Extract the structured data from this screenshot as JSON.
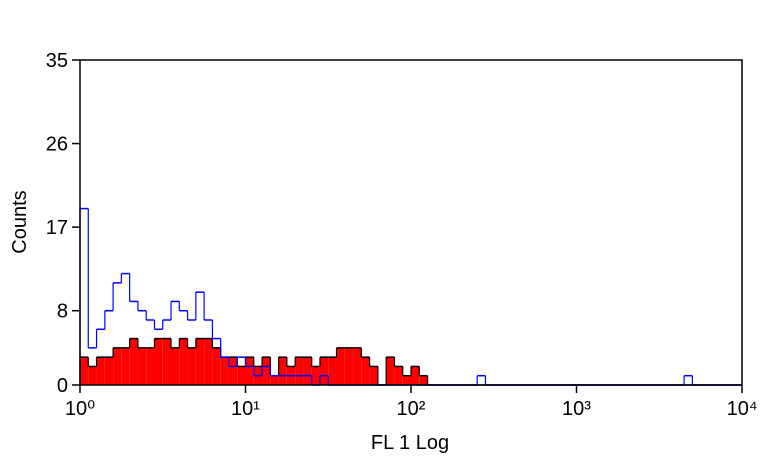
{
  "chart_data": {
    "type": "histogram",
    "xlabel": "FL 1 Log",
    "ylabel": "Counts",
    "xscale": "log",
    "xlim": [
      1,
      10000
    ],
    "ylim": [
      0,
      35
    ],
    "xticks": [
      {
        "value": 1,
        "label": "10⁰"
      },
      {
        "value": 10,
        "label": "10¹"
      },
      {
        "value": 100,
        "label": "10²"
      },
      {
        "value": 1000,
        "label": "10³"
      },
      {
        "value": 10000,
        "label": "10⁴"
      }
    ],
    "yticks": [
      0,
      8,
      17,
      26,
      35
    ],
    "bins": [
      1,
      1.122,
      1.259,
      1.413,
      1.585,
      1.778,
      1.995,
      2.239,
      2.512,
      2.818,
      3.162,
      3.548,
      3.981,
      4.467,
      5.012,
      5.623,
      6.31,
      7.079,
      7.943,
      8.913,
      10,
      11.22,
      12.59,
      14.13,
      15.85,
      17.78,
      19.95,
      22.39,
      25.12,
      28.18,
      31.62,
      35.48,
      39.81,
      44.67,
      50.12,
      56.23,
      63.1,
      70.79,
      79.43,
      89.13,
      100,
      112.2,
      125.9,
      141.3,
      158.5,
      177.8,
      199.5,
      223.9,
      251.2,
      281.8,
      316.2,
      354.8,
      398.1,
      446.7,
      501.2,
      562.3,
      631,
      707.9,
      794.3,
      891.3,
      1000,
      1122,
      1259,
      1413,
      1585,
      1778,
      1995,
      2239,
      2512,
      2818,
      3162,
      3548,
      3981,
      4467,
      5012,
      5623,
      6310,
      7079,
      7943,
      8913,
      10000
    ],
    "series": [
      {
        "color": "#ff0000",
        "edgecolor": "#000000",
        "fill": true,
        "values": [
          3,
          2,
          3,
          3,
          4,
          4,
          5,
          4,
          4,
          5,
          5,
          4,
          5,
          4,
          5,
          5,
          4,
          3,
          3,
          2,
          3,
          2,
          3,
          1,
          3,
          2,
          3,
          3,
          2,
          3,
          3,
          4,
          4,
          4,
          3,
          2,
          0,
          3,
          2,
          1,
          2,
          1,
          0,
          0,
          0,
          0,
          0,
          0,
          0,
          0,
          0,
          0,
          0,
          0,
          0,
          0,
          0,
          0,
          0,
          0,
          0,
          0,
          0,
          0,
          0,
          0,
          0,
          0,
          0,
          0,
          0,
          0,
          0,
          0,
          0,
          0,
          0,
          0,
          0,
          0
        ]
      },
      {
        "color": "#0000ff",
        "fill": false,
        "values": [
          19,
          4,
          6,
          8,
          11,
          12,
          9,
          8,
          7,
          6,
          7,
          9,
          8,
          7,
          10,
          7,
          5,
          3,
          2,
          3,
          2,
          1,
          2,
          1,
          1,
          1,
          1,
          1,
          0,
          1,
          0,
          0,
          0,
          0,
          0,
          0,
          0,
          0,
          0,
          0,
          0,
          0,
          0,
          0,
          0,
          0,
          0,
          0,
          1,
          0,
          0,
          0,
          0,
          0,
          0,
          0,
          0,
          0,
          0,
          0,
          0,
          0,
          0,
          0,
          0,
          0,
          0,
          0,
          0,
          0,
          0,
          0,
          0,
          1,
          0,
          0,
          0,
          0,
          0,
          0
        ]
      }
    ]
  }
}
